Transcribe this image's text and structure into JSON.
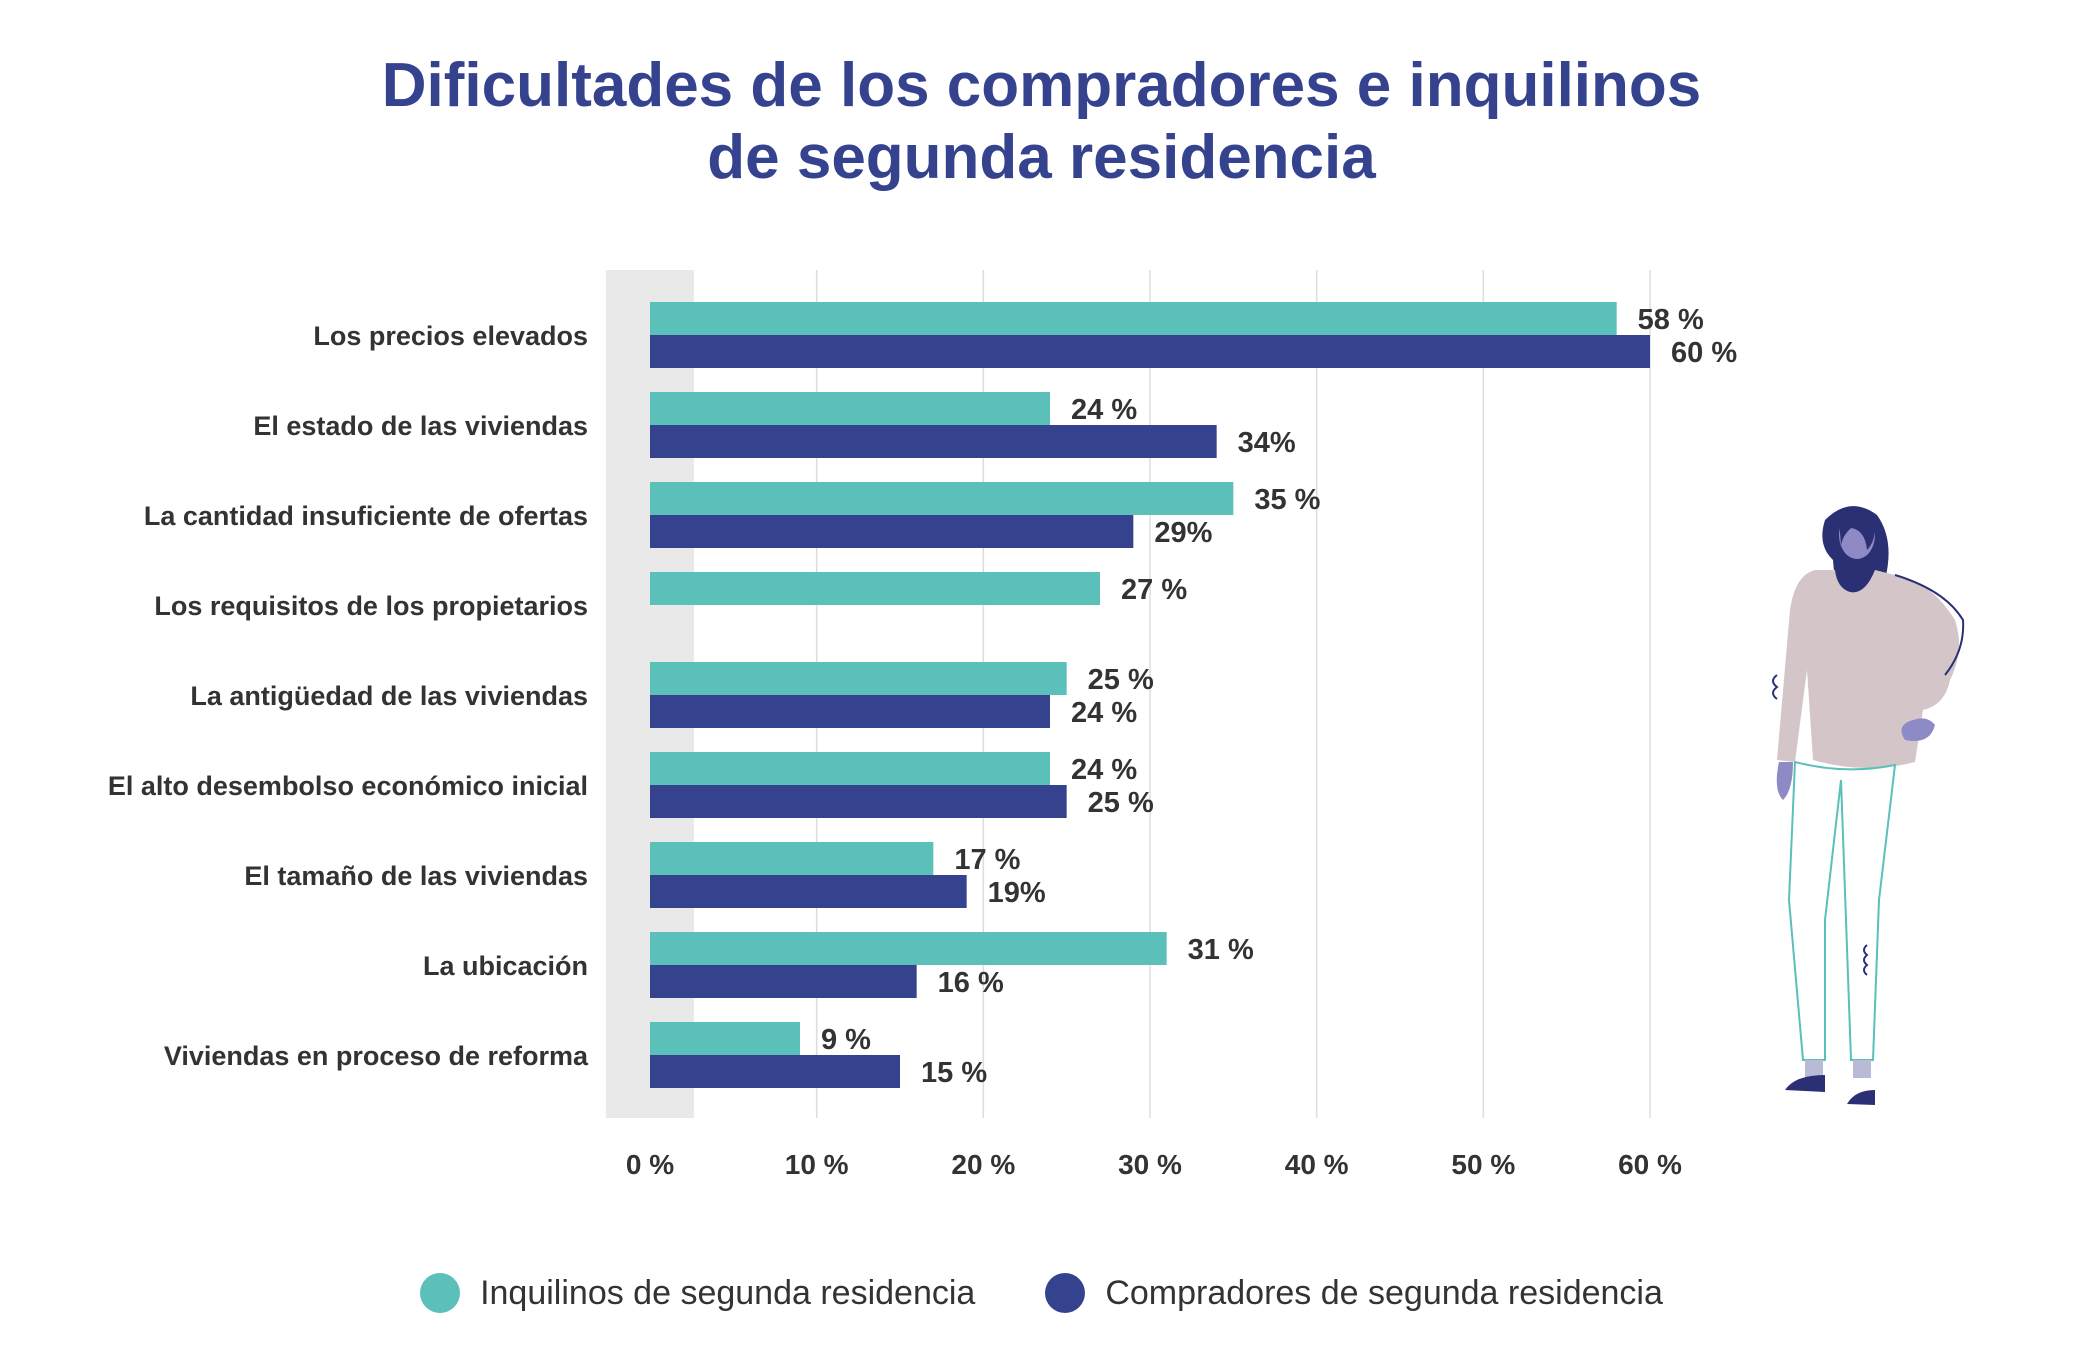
{
  "chart_data": {
    "type": "bar",
    "orientation": "horizontal",
    "title_lines": [
      "Dificultades de los compradores e inquilinos",
      "de segunda residencia"
    ],
    "categories": [
      "Los precios elevados",
      "El estado de las viviendas",
      "La cantidad insuficiente de ofertas",
      "Los requisitos de los propietarios",
      "La antigüedad de las viviendas",
      "El alto desembolso económico inicial",
      "El tamaño de las viviendas",
      "La ubicación",
      "Viviendas en proceso de reforma"
    ],
    "series": [
      {
        "name": "Inquilinos de segunda residencia",
        "color": "#5bbfba",
        "values": [
          58,
          24,
          35,
          27,
          25,
          24,
          17,
          31,
          9
        ],
        "labels": [
          "58 %",
          "24 %",
          "35 %",
          "27 %",
          "25 %",
          "24 %",
          "17 %",
          "31 %",
          "9 %"
        ]
      },
      {
        "name": "Compradores de segunda residencia",
        "color": "#35438f",
        "values": [
          60,
          34,
          29,
          null,
          24,
          25,
          19,
          16,
          15
        ],
        "labels": [
          "60 %",
          "34%",
          "29%",
          null,
          "24 %",
          "25 %",
          "19%",
          "16 %",
          "15 %"
        ]
      }
    ],
    "xlim": [
      0,
      60
    ],
    "xticks": [
      0,
      10,
      20,
      30,
      40,
      50,
      60
    ],
    "xtick_labels": [
      "0 %",
      "10 %",
      "20 %",
      "30 %",
      "40 %",
      "50 %",
      "60 %"
    ],
    "grid": true,
    "legend_position": "bottom"
  }
}
